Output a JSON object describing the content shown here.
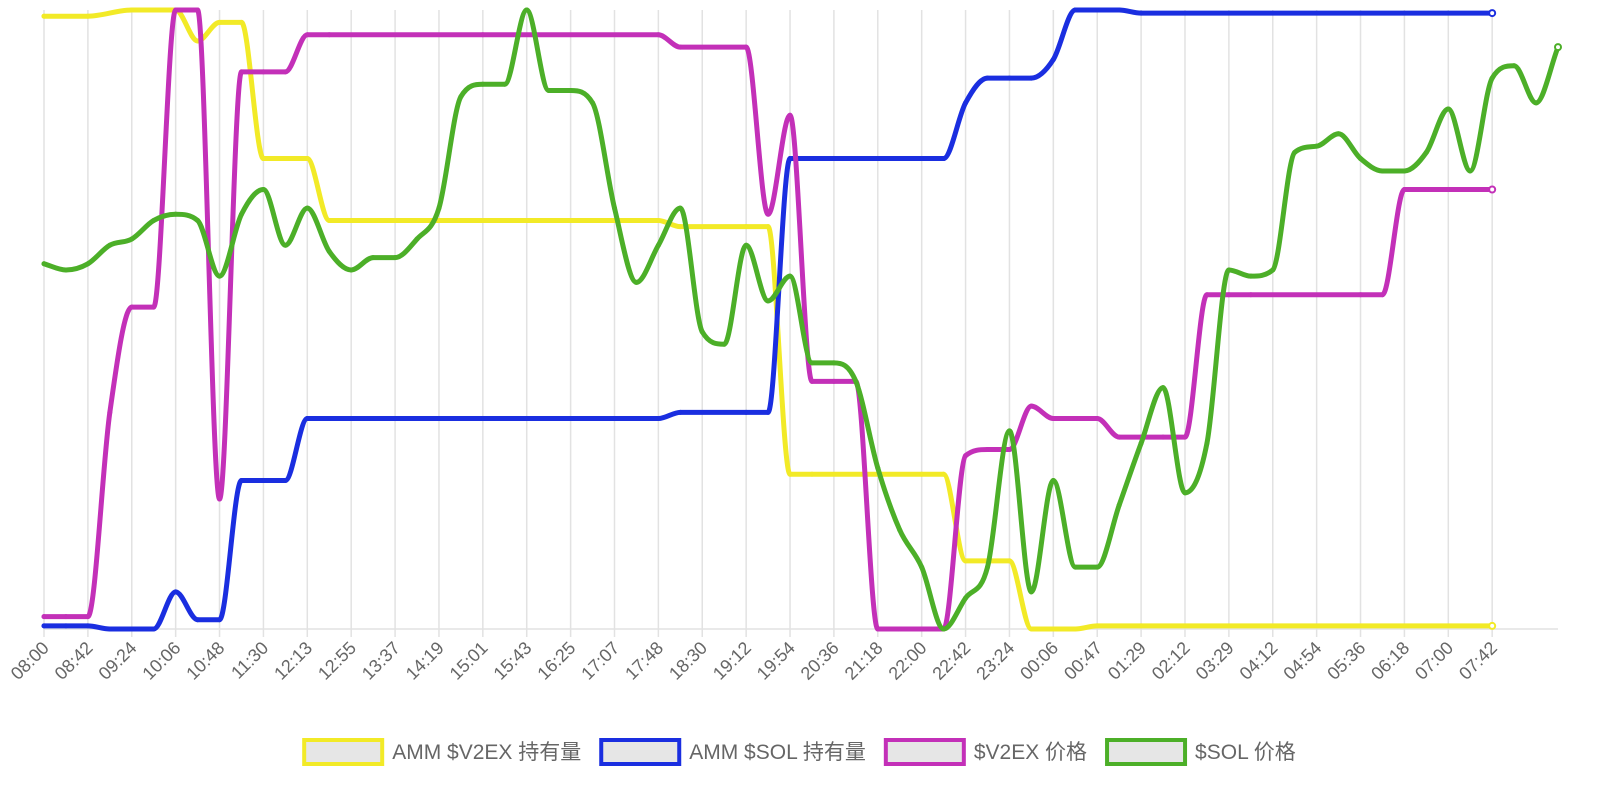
{
  "chart_data": {
    "type": "line",
    "title": "",
    "xlabel": "",
    "ylabel": "",
    "grid": true,
    "legend_position": "bottom",
    "y_axis_labels_shown": false,
    "ylim": [
      0,
      100
    ],
    "x_tick_labels": [
      "08:00",
      "08:42",
      "09:24",
      "10:06",
      "10:48",
      "11:30",
      "12:13",
      "12:55",
      "13:37",
      "14:19",
      "15:01",
      "15:43",
      "16:25",
      "17:07",
      "17:48",
      "18:30",
      "19:12",
      "19:54",
      "20:36",
      "21:18",
      "22:00",
      "22:42",
      "23:24",
      "00:06",
      "00:47",
      "01:29",
      "02:12",
      "03:29",
      "04:12",
      "04:54",
      "05:36",
      "06:18",
      "07:00",
      "07:42"
    ],
    "series": [
      {
        "name": "AMM $V2EX 持有量",
        "color": "#f2ea27",
        "points": [
          [
            0,
            99
          ],
          [
            2,
            99
          ],
          [
            4,
            100
          ],
          [
            6,
            100
          ],
          [
            7,
            95
          ],
          [
            8,
            98
          ],
          [
            9,
            98
          ],
          [
            10,
            76
          ],
          [
            11,
            76
          ],
          [
            12,
            76
          ],
          [
            13,
            66
          ],
          [
            14,
            66
          ],
          [
            20,
            66
          ],
          [
            28,
            66
          ],
          [
            29,
            65
          ],
          [
            32,
            65
          ],
          [
            33,
            65
          ],
          [
            34,
            25
          ],
          [
            35,
            25
          ],
          [
            40,
            25
          ],
          [
            41,
            25
          ],
          [
            42,
            11
          ],
          [
            43,
            11
          ],
          [
            44,
            11
          ],
          [
            45,
            0
          ],
          [
            46,
            0
          ],
          [
            47,
            0
          ],
          [
            48,
            0.5
          ],
          [
            50,
            0.5
          ],
          [
            66,
            0.5
          ]
        ]
      },
      {
        "name": "AMM $SOL 持有量",
        "color": "#1a2ee0",
        "points": [
          [
            0,
            0.5
          ],
          [
            1,
            0.5
          ],
          [
            2,
            0.5
          ],
          [
            3,
            0
          ],
          [
            4,
            0
          ],
          [
            5,
            0
          ],
          [
            6,
            6
          ],
          [
            7,
            1.5
          ],
          [
            8,
            1.5
          ],
          [
            9,
            24
          ],
          [
            10,
            24
          ],
          [
            11,
            24
          ],
          [
            12,
            34
          ],
          [
            13,
            34
          ],
          [
            20,
            34
          ],
          [
            28,
            34
          ],
          [
            29,
            35
          ],
          [
            32,
            35
          ],
          [
            33,
            35
          ],
          [
            34,
            76
          ],
          [
            35,
            76
          ],
          [
            40,
            76
          ],
          [
            41,
            76
          ],
          [
            42,
            85
          ],
          [
            43,
            89
          ],
          [
            44,
            89
          ],
          [
            45,
            89
          ],
          [
            46,
            92
          ],
          [
            47,
            100
          ],
          [
            48,
            100
          ],
          [
            49,
            100
          ],
          [
            50,
            99.5
          ],
          [
            66,
            99.5
          ]
        ]
      },
      {
        "name": "$V2EX 价格",
        "color": "#c330b8",
        "points": [
          [
            0,
            2
          ],
          [
            1,
            2
          ],
          [
            2,
            2
          ],
          [
            3,
            35
          ],
          [
            4,
            52
          ],
          [
            5,
            52
          ],
          [
            6,
            100
          ],
          [
            7,
            100
          ],
          [
            8,
            21
          ],
          [
            9,
            90
          ],
          [
            10,
            90
          ],
          [
            11,
            90
          ],
          [
            12,
            96
          ],
          [
            13,
            96
          ],
          [
            20,
            96
          ],
          [
            28,
            96
          ],
          [
            29,
            94
          ],
          [
            32,
            94
          ],
          [
            33,
            67
          ],
          [
            34,
            83
          ],
          [
            35,
            40
          ],
          [
            36,
            40
          ],
          [
            37,
            40
          ],
          [
            38,
            0
          ],
          [
            39,
            0
          ],
          [
            40,
            0
          ],
          [
            41,
            0
          ],
          [
            42,
            28
          ],
          [
            43,
            29
          ],
          [
            44,
            29
          ],
          [
            45,
            36
          ],
          [
            46,
            34
          ],
          [
            47,
            34
          ],
          [
            48,
            34
          ],
          [
            49,
            31
          ],
          [
            50,
            31
          ],
          [
            51,
            31
          ],
          [
            52,
            31
          ],
          [
            53,
            54
          ],
          [
            54,
            54
          ],
          [
            55,
            54
          ],
          [
            60,
            54
          ],
          [
            61,
            54
          ],
          [
            62,
            71
          ],
          [
            63,
            71
          ],
          [
            66,
            71
          ]
        ]
      },
      {
        "name": "$SOL 价格",
        "color": "#4caf28",
        "points": [
          [
            0,
            59
          ],
          [
            1,
            58
          ],
          [
            2,
            59
          ],
          [
            3,
            62
          ],
          [
            4,
            63
          ],
          [
            5,
            66
          ],
          [
            6,
            67
          ],
          [
            7,
            66
          ],
          [
            8,
            57
          ],
          [
            9,
            67
          ],
          [
            10,
            71
          ],
          [
            11,
            62
          ],
          [
            12,
            68
          ],
          [
            13,
            61
          ],
          [
            14,
            58
          ],
          [
            15,
            60
          ],
          [
            16,
            60
          ],
          [
            17,
            63
          ],
          [
            18,
            68
          ],
          [
            19,
            86
          ],
          [
            20,
            88
          ],
          [
            21,
            88
          ],
          [
            22,
            100
          ],
          [
            23,
            87
          ],
          [
            24,
            87
          ],
          [
            25,
            85
          ],
          [
            26,
            68
          ],
          [
            27,
            56
          ],
          [
            28,
            62
          ],
          [
            29,
            68
          ],
          [
            30,
            48
          ],
          [
            31,
            46
          ],
          [
            32,
            62
          ],
          [
            33,
            53
          ],
          [
            34,
            57
          ],
          [
            35,
            43
          ],
          [
            36,
            43
          ],
          [
            37,
            40
          ],
          [
            38,
            26
          ],
          [
            39,
            16
          ],
          [
            40,
            10
          ],
          [
            41,
            0
          ],
          [
            42,
            5
          ],
          [
            43,
            10
          ],
          [
            44,
            32
          ],
          [
            45,
            6
          ],
          [
            46,
            24
          ],
          [
            47,
            10
          ],
          [
            48,
            10
          ],
          [
            49,
            20
          ],
          [
            50,
            30
          ],
          [
            51,
            39
          ],
          [
            52,
            22
          ],
          [
            53,
            30
          ],
          [
            54,
            58
          ],
          [
            55,
            57
          ],
          [
            56,
            58
          ],
          [
            57,
            77
          ],
          [
            58,
            78
          ],
          [
            59,
            80
          ],
          [
            60,
            76
          ],
          [
            61,
            74
          ],
          [
            62,
            74
          ],
          [
            63,
            77
          ],
          [
            64,
            84
          ],
          [
            65,
            74
          ],
          [
            66,
            89
          ],
          [
            67,
            91
          ],
          [
            68,
            85
          ],
          [
            69,
            94
          ]
        ]
      }
    ]
  }
}
